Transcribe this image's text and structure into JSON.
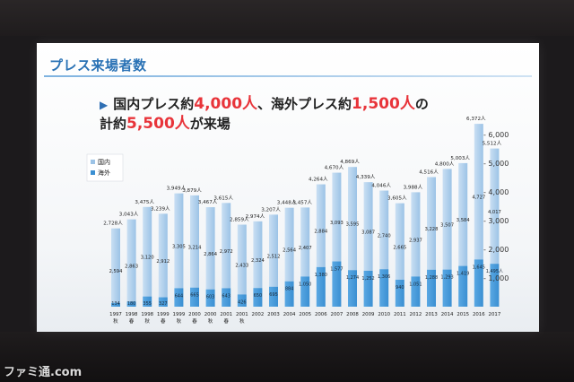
{
  "slide": {
    "title": "プレス来場者数",
    "headline_line1_a": "国内プレス約",
    "headline_line1_b": "4,000人",
    "headline_line1_c": "、海外プレス約",
    "headline_line1_d": "1,500人",
    "headline_line1_e": "の",
    "headline_line2_a": "計約",
    "headline_line2_b": "5,500人",
    "headline_line2_c": "が来場"
  },
  "watermark": "ファミ通.com",
  "colors": {
    "domestic": "#9cc3e6",
    "overseas": "#3a8fd2",
    "highlight": "#e8343a",
    "title": "#2a72b5"
  },
  "chart_data": {
    "type": "bar",
    "stacked": true,
    "legend": [
      "国内",
      "海外"
    ],
    "legend_position": "top-left",
    "categories": [
      "1997 秋",
      "1998 春",
      "1998 秋",
      "1999 春",
      "1999 秋",
      "2000 春",
      "2000 秋",
      "2001 春",
      "2001 秋",
      "2002",
      "2003",
      "2004",
      "2005",
      "2006",
      "2007",
      "2008",
      "2009",
      "2010",
      "2011",
      "2012",
      "2013",
      "2014",
      "2015",
      "2016",
      "2017"
    ],
    "x_year_labels": [
      "1997",
      "1998",
      "1998",
      "1999",
      "1999",
      "2000",
      "2000",
      "2001",
      "2001",
      "2002",
      "2003",
      "2004",
      "2005",
      "2006",
      "2007",
      "2008",
      "2009",
      "2010",
      "2011",
      "2012",
      "2013",
      "2014",
      "2015",
      "2016",
      "2017"
    ],
    "x_season_labels": [
      "秋",
      "春",
      "秋",
      "春",
      "秋",
      "春",
      "秋",
      "春",
      "秋",
      "",
      "",
      "",
      "",
      "",
      "",
      "",
      "",
      "",
      "",
      "",
      "",
      "",
      "",
      "",
      ""
    ],
    "series": [
      {
        "name": "国内",
        "values": [
          2594,
          2863,
          3120,
          2912,
          3305,
          3214,
          2864,
          2972,
          2433,
          2324,
          2512,
          2564,
          2407,
          2884,
          3093,
          3595,
          3087,
          2740,
          2665,
          2937,
          3228,
          3507,
          3584,
          4727,
          4017
        ]
      },
      {
        "name": "海外",
        "values": [
          134,
          180,
          355,
          327,
          644,
          665,
          603,
          643,
          426,
          650,
          695,
          884,
          1050,
          1380,
          1577,
          1274,
          1252,
          1306,
          940,
          1051,
          1288,
          1293,
          1419,
          1645,
          1495
        ]
      }
    ],
    "totals": [
      2728,
      3043,
      3475,
      3239,
      3949,
      3879,
      3467,
      3615,
      2859,
      2974,
      3207,
      3448,
      3457,
      4264,
      4670,
      4869,
      4339,
      4046,
      3605,
      3988,
      4516,
      4800,
      5003,
      6372,
      5512
    ],
    "total_labels": [
      "2,728人",
      "3,043人",
      "3,475人",
      "3,239人",
      "3,949人",
      "3,879人",
      "3,467人",
      "3,615人",
      "2,859人",
      "2,974人",
      "3,207人",
      "3,448人",
      "3,457人",
      "4,264人",
      "4,670人",
      "4,869人",
      "4,339人",
      "4,046人",
      "3,605人",
      "3,988人",
      "4,516人",
      "4,800人",
      "5,003人",
      "6,372人",
      "5,512人"
    ],
    "domestic_labels": [
      "2,594",
      "2,863",
      "3,120",
      "2,912",
      "3,305",
      "3,214",
      "2,864",
      "2,972",
      "2,433",
      "2,324",
      "2,512",
      "2,564",
      "2,407",
      "2,884",
      "3,093",
      "3,595",
      "3,087",
      "2,740",
      "2,665",
      "2,937",
      "3,228",
      "3,507",
      "3,584",
      "4,727",
      "4,017"
    ],
    "overseas_labels": [
      "134",
      "180",
      "355",
      "327",
      "644",
      "665",
      "603",
      "643",
      "426",
      "650",
      "695",
      "884",
      "1,050",
      "1,380",
      "1,577",
      "1,274",
      "1,252",
      "1,306",
      "940",
      "1,051",
      "1,288",
      "1,293",
      "1,419",
      "1,645",
      "1,495"
    ],
    "overseas_last_suffix": "人",
    "y_ticks": [
      1000,
      2000,
      3000,
      4000,
      5000,
      6000
    ],
    "y_tick_labels": [
      "- 1,000",
      "- 2,000",
      "- 3,000",
      "- 4,000",
      "- 5,000",
      "- 6,000"
    ],
    "ylim": [
      0,
      6500
    ],
    "grid": false
  }
}
